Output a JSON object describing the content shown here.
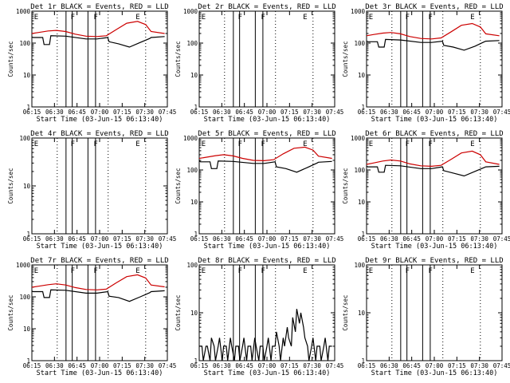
{
  "chart_data": [
    {
      "type": "line",
      "title": "Det 1r BLACK = Events, RED = LLD",
      "ylabel": "Counts/sec",
      "xlabel": "Start Time (03-Jun-15 06:13:40)",
      "ylog": true,
      "ylim": [
        1,
        1000
      ],
      "yticks": [
        "1",
        "10",
        "100",
        "1000"
      ],
      "xlim": [
        0,
        100
      ],
      "xtick_labels": [
        "06:15",
        "06:30",
        "06:45",
        "07:00",
        "07:15",
        "07:30",
        "07:45"
      ],
      "markers": [
        "E",
        "F",
        "F",
        "E"
      ],
      "series": [
        {
          "color": "#000000",
          "x": [
            0,
            1,
            8,
            9,
            13,
            14,
            25,
            40,
            48,
            56,
            57,
            64,
            72,
            80,
            87,
            88,
            98
          ],
          "y": [
            155,
            150,
            150,
            90,
            90,
            170,
            165,
            135,
            135,
            150,
            110,
            95,
            75,
            105,
            140,
            150,
            160
          ]
        },
        {
          "color": "#cc0000",
          "x": [
            0,
            5,
            12,
            18,
            25,
            32,
            40,
            48,
            55,
            62,
            70,
            78,
            84,
            88,
            98
          ],
          "y": [
            200,
            215,
            240,
            250,
            230,
            190,
            165,
            160,
            170,
            260,
            420,
            480,
            380,
            230,
            200
          ]
        }
      ]
    },
    {
      "type": "line",
      "title": "Det 2r BLACK = Events, RED = LLD",
      "ylabel": "Counts/sec",
      "xlabel": "Start Time (03-Jun-15 06:13:40)",
      "ylog": true,
      "ylim": [
        1,
        1000
      ],
      "yticks": [
        "1",
        "10",
        "100",
        "1000"
      ],
      "xlim": [
        0,
        100
      ],
      "xtick_labels": [
        "06:15",
        "06:30",
        "06:45",
        "07:00",
        "07:15",
        "07:30",
        "07:45"
      ],
      "markers": [
        "E",
        "F",
        "F",
        "E"
      ],
      "series": []
    },
    {
      "type": "line",
      "title": "Det 3r BLACK = Events, RED = LLD",
      "ylabel": "Counts/sec",
      "xlabel": "Start Time (03-Jun-15 06:13:40)",
      "ylog": true,
      "ylim": [
        1,
        1000
      ],
      "yticks": [
        "1",
        "10",
        "100",
        "1000"
      ],
      "xlim": [
        0,
        100
      ],
      "xtick_labels": [
        "06:15",
        "06:30",
        "06:45",
        "07:00",
        "07:15",
        "07:30",
        "07:45"
      ],
      "markers": [
        "E",
        "F",
        "F",
        "E"
      ],
      "series": [
        {
          "color": "#000000",
          "x": [
            0,
            1,
            8,
            9,
            13,
            14,
            25,
            40,
            48,
            56,
            57,
            64,
            72,
            80,
            87,
            88,
            98
          ],
          "y": [
            115,
            110,
            110,
            75,
            75,
            130,
            125,
            105,
            105,
            115,
            85,
            75,
            60,
            80,
            110,
            115,
            120
          ]
        },
        {
          "color": "#cc0000",
          "x": [
            0,
            5,
            12,
            18,
            25,
            32,
            40,
            48,
            55,
            62,
            70,
            78,
            84,
            88,
            98
          ],
          "y": [
            170,
            185,
            205,
            215,
            195,
            160,
            140,
            135,
            145,
            220,
            360,
            410,
            320,
            195,
            170
          ]
        }
      ]
    },
    {
      "type": "line",
      "title": "Det 4r BLACK = Events, RED = LLD",
      "ylabel": "Counts/sec",
      "xlabel": "Start Time (03-Jun-15 06:13:40)",
      "ylog": true,
      "ylim": [
        1,
        100
      ],
      "yticks": [
        "1",
        "10",
        "100"
      ],
      "xlim": [
        0,
        100
      ],
      "xtick_labels": [
        "06:15",
        "06:30",
        "06:45",
        "07:00",
        "07:15",
        "07:30",
        "07:45"
      ],
      "markers": [
        "E",
        "F",
        "F",
        "E"
      ],
      "series": []
    },
    {
      "type": "line",
      "title": "Det 5r BLACK = Events, RED = LLD",
      "ylabel": "Counts/sec",
      "xlabel": "Start Time (03-Jun-15 06:13:40)",
      "ylog": true,
      "ylim": [
        1,
        1000
      ],
      "yticks": [
        "1",
        "10",
        "100",
        "1000"
      ],
      "xlim": [
        0,
        100
      ],
      "xtick_labels": [
        "06:15",
        "06:30",
        "06:45",
        "07:00",
        "07:15",
        "07:30",
        "07:45"
      ],
      "markers": [
        "E",
        "F",
        "F",
        "E"
      ],
      "series": [
        {
          "color": "#000000",
          "x": [
            0,
            1,
            8,
            9,
            13,
            14,
            25,
            40,
            48,
            56,
            57,
            64,
            72,
            80,
            87,
            88,
            98
          ],
          "y": [
            190,
            180,
            180,
            110,
            110,
            190,
            185,
            160,
            160,
            180,
            125,
            110,
            85,
            120,
            165,
            175,
            185
          ]
        },
        {
          "color": "#cc0000",
          "x": [
            0,
            5,
            12,
            18,
            25,
            32,
            40,
            48,
            55,
            62,
            70,
            78,
            84,
            88,
            98
          ],
          "y": [
            230,
            250,
            280,
            300,
            275,
            230,
            200,
            195,
            210,
            320,
            480,
            520,
            420,
            270,
            230
          ]
        }
      ]
    },
    {
      "type": "line",
      "title": "Det 6r BLACK = Events, RED = LLD",
      "ylabel": "Counts/sec",
      "xlabel": "Start Time (03-Jun-15 06:13:40)",
      "ylog": true,
      "ylim": [
        1,
        1000
      ],
      "yticks": [
        "1",
        "10",
        "100",
        "1000"
      ],
      "xlim": [
        0,
        100
      ],
      "xtick_labels": [
        "06:15",
        "06:30",
        "06:45",
        "07:00",
        "07:15",
        "07:30",
        "07:45"
      ],
      "markers": [
        "E",
        "F",
        "F",
        "E"
      ],
      "series": [
        {
          "color": "#000000",
          "x": [
            0,
            1,
            8,
            9,
            13,
            14,
            25,
            40,
            48,
            56,
            57,
            64,
            72,
            80,
            87,
            88,
            98
          ],
          "y": [
            130,
            125,
            125,
            85,
            85,
            140,
            135,
            110,
            110,
            125,
            95,
            80,
            65,
            90,
            120,
            125,
            130
          ]
        },
        {
          "color": "#cc0000",
          "x": [
            0,
            5,
            12,
            18,
            25,
            32,
            40,
            48,
            55,
            62,
            70,
            78,
            84,
            88,
            98
          ],
          "y": [
            150,
            165,
            190,
            205,
            190,
            155,
            135,
            130,
            140,
            210,
            340,
            390,
            300,
            180,
            150
          ]
        }
      ]
    },
    {
      "type": "line",
      "title": "Det 7r BLACK = Events, RED = LLD",
      "ylabel": "Counts/sec",
      "xlabel": "Start Time (03-Jun-15 06:13:40)",
      "ylog": true,
      "ylim": [
        1,
        1000
      ],
      "yticks": [
        "1",
        "10",
        "100",
        "1000"
      ],
      "xlim": [
        0,
        100
      ],
      "xtick_labels": [
        "06:15",
        "06:30",
        "06:45",
        "07:00",
        "07:15",
        "07:30",
        "07:45"
      ],
      "markers": [
        "E",
        "F",
        "F",
        "E"
      ],
      "series": [
        {
          "color": "#000000",
          "x": [
            0,
            1,
            8,
            9,
            13,
            14,
            25,
            40,
            48,
            56,
            57,
            64,
            72,
            80,
            87,
            88,
            98
          ],
          "y": [
            150,
            145,
            145,
            95,
            95,
            165,
            160,
            130,
            130,
            145,
            105,
            95,
            72,
            100,
            135,
            145,
            155
          ]
        },
        {
          "color": "#cc0000",
          "x": [
            0,
            5,
            12,
            18,
            25,
            32,
            40,
            48,
            55,
            62,
            70,
            78,
            84,
            88,
            98
          ],
          "y": [
            200,
            215,
            240,
            255,
            235,
            195,
            170,
            165,
            175,
            270,
            430,
            490,
            390,
            235,
            205
          ]
        }
      ]
    },
    {
      "type": "line",
      "title": "Det 8r BLACK = Events, RED = LLD",
      "ylabel": "Counts/sec",
      "xlabel": "Start Time (03-Jun-15 06:13:40)",
      "ylog": true,
      "ylim": [
        1,
        100
      ],
      "yticks": [
        "1",
        "10",
        "100"
      ],
      "xlim": [
        0,
        100
      ],
      "xtick_labels": [
        "06:15",
        "06:30",
        "06:45",
        "07:00",
        "07:15",
        "07:30",
        "07:45"
      ],
      "markers": [
        "E",
        "F",
        "F",
        "E"
      ],
      "series": [
        {
          "color": "#000000",
          "x": [
            0,
            2,
            3,
            5,
            6,
            8,
            9,
            11,
            12,
            14,
            15,
            17,
            18,
            20,
            21,
            23,
            24,
            26,
            27,
            29,
            30,
            32,
            33,
            35,
            36,
            38,
            39,
            41,
            42,
            44,
            45,
            47,
            48,
            50,
            51,
            53,
            54,
            56,
            57,
            59,
            60,
            62,
            63,
            65,
            66,
            68,
            69,
            71,
            72,
            74,
            75,
            77,
            78,
            80,
            81,
            83,
            84,
            86,
            87,
            89,
            90,
            92,
            93,
            95,
            96,
            98
          ],
          "y": [
            2,
            2,
            1,
            2,
            2,
            1,
            3,
            2,
            1,
            2,
            3,
            1,
            2,
            2,
            1,
            3,
            2,
            1,
            2,
            2,
            1,
            2,
            3,
            1,
            2,
            2,
            1,
            3,
            2,
            1,
            2,
            2,
            1,
            2,
            3,
            1,
            2,
            2,
            4,
            2,
            1,
            3,
            2,
            5,
            3,
            2,
            8,
            4,
            12,
            6,
            10,
            5,
            3,
            2,
            1,
            2,
            3,
            1,
            2,
            2,
            1,
            2,
            3,
            1,
            2,
            2
          ]
        }
      ]
    },
    {
      "type": "line",
      "title": "Det 9r BLACK = Events, RED = LLD",
      "ylabel": "Counts/sec",
      "xlabel": "Start Time (03-Jun-15 06:13:40)",
      "ylog": true,
      "ylim": [
        1,
        100
      ],
      "yticks": [
        "1",
        "10",
        "100"
      ],
      "xlim": [
        0,
        100
      ],
      "xtick_labels": [
        "06:15",
        "06:30",
        "06:45",
        "07:00",
        "07:15",
        "07:30",
        "07:45"
      ],
      "markers": [
        "E",
        "F",
        "F",
        "E"
      ],
      "series": []
    }
  ]
}
